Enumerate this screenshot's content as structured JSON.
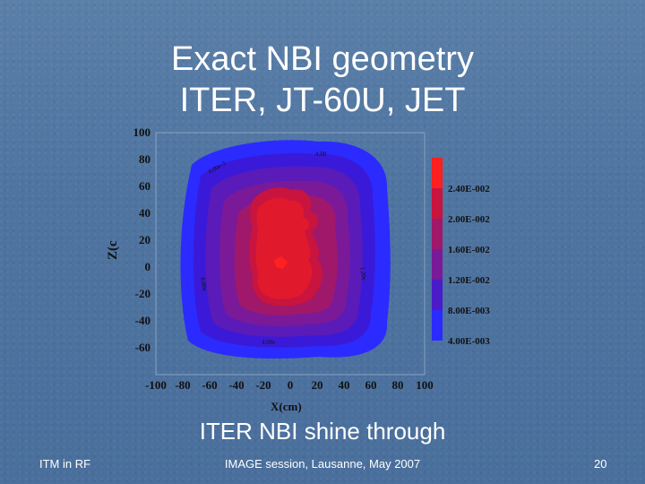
{
  "slide": {
    "title_line1": "Exact NBI geometry",
    "title_line2": "ITER, JT-60U, JET",
    "caption": "ITER NBI shine through",
    "footer_left": "ITM in RF",
    "footer_center": "IMAGE session, Lausanne, May 2007",
    "footer_right": "20"
  },
  "chart_data": {
    "type": "heatmap",
    "xlabel": "X(cm)",
    "ylabel": "Z(c",
    "x_ticks": [
      "-100",
      "-80",
      "-60",
      "-40",
      "-20",
      "0",
      "20",
      "40",
      "60",
      "80",
      "100"
    ],
    "y_ticks": [
      "100",
      "80",
      "60",
      "40",
      "20",
      "0",
      "-20",
      "-40",
      "-60"
    ],
    "xlim": [
      -100,
      100
    ],
    "ylim": [
      -60,
      100
    ],
    "colorbar_labels": [
      "2.40E-002",
      "2.00E-002",
      "1.60E-002",
      "1.20E-002",
      "8.00E-003",
      "4.00E-003"
    ],
    "colors": {
      "level1": "#2b2bff",
      "level2": "#3a1ad8",
      "level3": "#5a1bb8",
      "level4": "#7a1a98",
      "level5": "#a0186a",
      "level6": "#c8143e",
      "level7": "#e01a2c",
      "peak": "#ff2020"
    }
  }
}
